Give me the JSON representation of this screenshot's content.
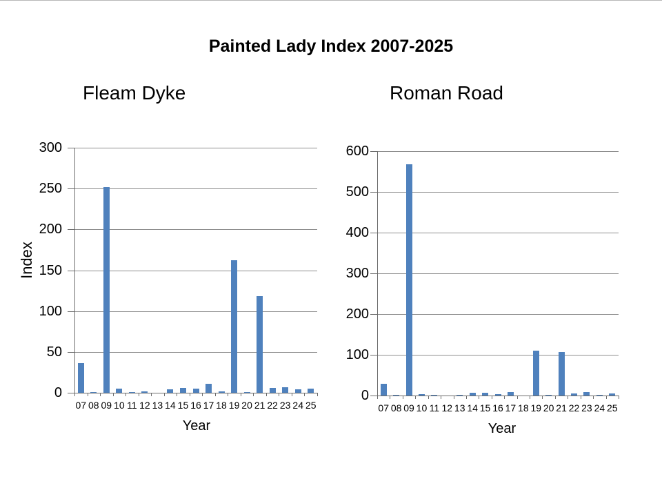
{
  "page": {
    "title": "Painted Lady Index 2007-2025",
    "background_color": "#FFFFFF",
    "text_color": "#000000"
  },
  "chart_data": [
    {
      "type": "bar",
      "title": "Fleam Dyke",
      "xlabel": "Year",
      "ylabel": "Index",
      "categories": [
        "07",
        "08",
        "09",
        "10",
        "11",
        "12",
        "13",
        "14",
        "15",
        "16",
        "17",
        "18",
        "19",
        "20",
        "21",
        "22",
        "23",
        "24",
        "25"
      ],
      "values": [
        36,
        1,
        252,
        5,
        1,
        2,
        0,
        4,
        6,
        5,
        11,
        2,
        162,
        1,
        118,
        6,
        7,
        4,
        5
      ],
      "ylim": [
        0,
        300
      ],
      "ytick_step": 50,
      "yticks": [
        0,
        50,
        100,
        150,
        200,
        250,
        300
      ],
      "grid": true,
      "legend": false,
      "bar_color": "#4F81BD",
      "gridline_color": "#8C8C8C",
      "axis_color": "#6B6B6B"
    },
    {
      "type": "bar",
      "title": "Roman Road",
      "xlabel": "Year",
      "ylabel": "",
      "categories": [
        "07",
        "08",
        "09",
        "10",
        "11",
        "12",
        "13",
        "14",
        "15",
        "16",
        "17",
        "18",
        "19",
        "20",
        "21",
        "22",
        "23",
        "24",
        "25"
      ],
      "values": [
        28,
        2,
        567,
        4,
        2,
        0,
        2,
        6,
        6,
        3,
        8,
        0,
        111,
        2,
        106,
        5,
        9,
        2,
        5
      ],
      "ylim": [
        0,
        600
      ],
      "ytick_step": 100,
      "yticks": [
        0,
        100,
        200,
        300,
        400,
        500,
        600
      ],
      "grid": true,
      "legend": false,
      "bar_color": "#4F81BD",
      "gridline_color": "#8C8C8C",
      "axis_color": "#6B6B6B"
    }
  ]
}
